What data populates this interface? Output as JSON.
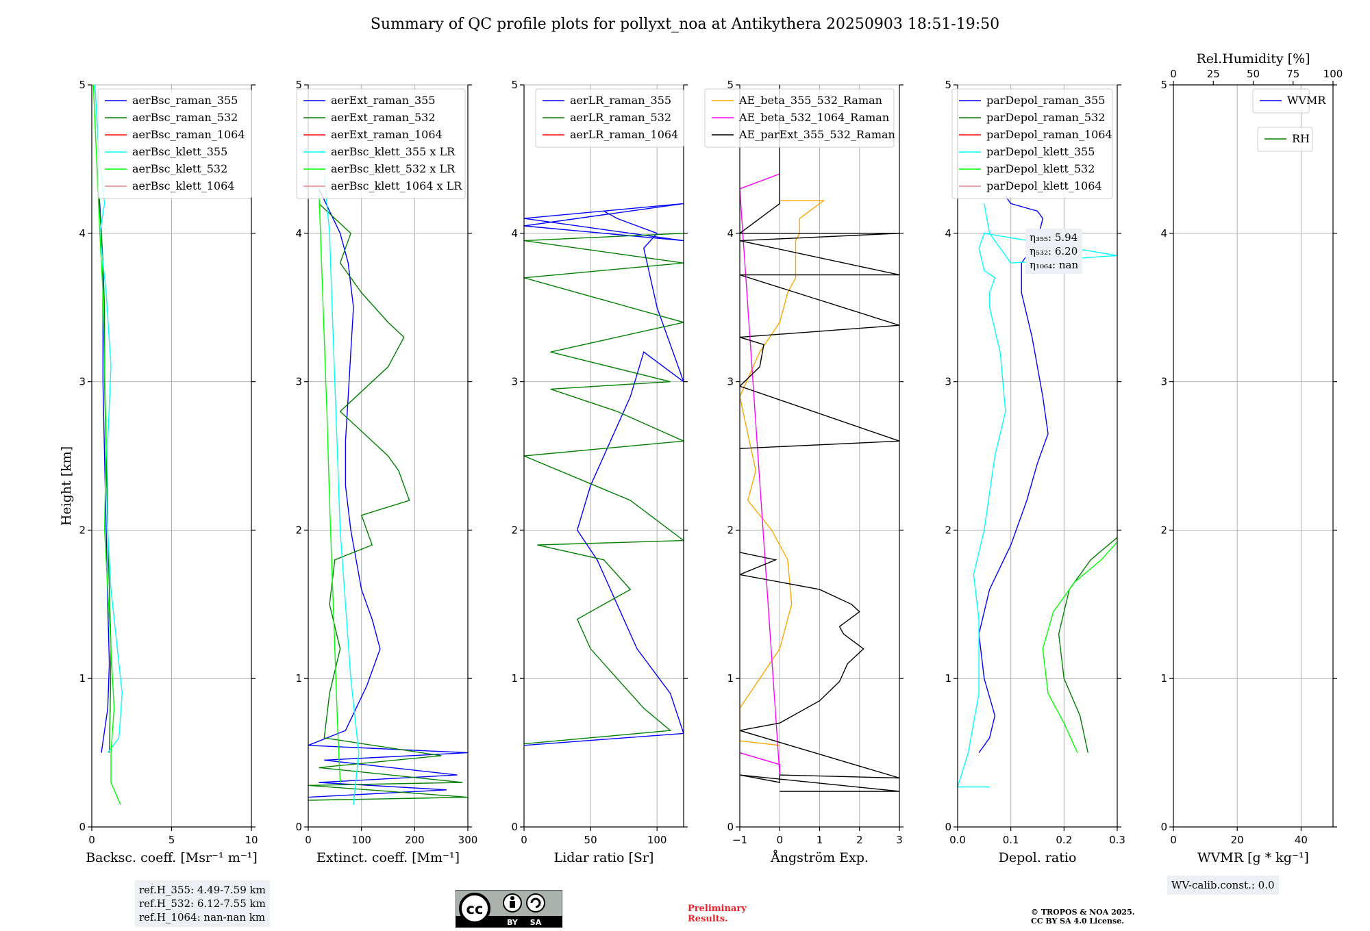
{
  "title": "Summary of QC profile plots for pollyxt_noa at Antikythera 20250903 18:51-19:50",
  "y_label": "Height [km]",
  "chart_data": [
    {
      "id": "backscatter",
      "type": "line",
      "xlabel": "Backsc. coeff. [Msr⁻¹ m⁻¹]",
      "xlim": [
        0,
        10
      ],
      "xticks": [
        0,
        5,
        10
      ],
      "ylim": [
        0,
        5
      ],
      "yticks": [
        0,
        1,
        2,
        3,
        4,
        5
      ],
      "legend": [
        {
          "name": "aerBsc_raman_355",
          "color": "#0000ff"
        },
        {
          "name": "aerBsc_raman_532",
          "color": "#008000"
        },
        {
          "name": "aerBsc_raman_1064",
          "color": "#ff0000"
        },
        {
          "name": "aerBsc_klett_355",
          "color": "#00ffff"
        },
        {
          "name": "aerBsc_klett_532",
          "color": "#00ff00"
        },
        {
          "name": "aerBsc_klett_1064",
          "color": "#f08080"
        }
      ],
      "series": [
        {
          "name": "aerBsc_raman_355",
          "color": "#0000ff",
          "x": [
            0.6,
            1.0,
            1.1,
            1.0,
            0.9,
            0.8,
            0.7,
            0.7,
            0.7,
            0.6,
            0.5,
            0.4
          ],
          "y": [
            0.5,
            0.8,
            1.1,
            1.5,
            2.0,
            2.5,
            3.0,
            3.5,
            3.8,
            4.0,
            4.2,
            4.3
          ]
        },
        {
          "name": "aerBsc_raman_532",
          "color": "#008000",
          "x": [
            1.1,
            1.15,
            1.2,
            1.1,
            1.0,
            0.9,
            0.8,
            0.8,
            0.7,
            0.6,
            0.4
          ],
          "y": [
            0.5,
            0.8,
            1.2,
            1.6,
            2.0,
            2.5,
            3.0,
            3.5,
            3.8,
            4.0,
            4.3
          ]
        },
        {
          "name": "aerBsc_klett_355",
          "color": "#00ffff",
          "x": [
            1.0,
            1.7,
            1.9,
            1.6,
            1.2,
            1.0,
            1.0,
            1.2,
            0.9,
            0.5,
            0.8,
            0.4,
            0.2
          ],
          "y": [
            0.5,
            0.6,
            0.9,
            1.2,
            1.6,
            2.0,
            2.6,
            3.1,
            3.6,
            4.0,
            4.2,
            4.6,
            5.0
          ]
        },
        {
          "name": "aerBsc_klett_532",
          "color": "#00ff00",
          "x": [
            1.8,
            1.2,
            1.2,
            1.4,
            1.2,
            1.0,
            0.8,
            0.9,
            0.8,
            0.7,
            0.5,
            0.3,
            0.1
          ],
          "y": [
            0.15,
            0.3,
            0.5,
            0.8,
            1.2,
            1.6,
            2.0,
            2.6,
            3.1,
            3.6,
            4.0,
            4.5,
            5.0
          ]
        }
      ]
    },
    {
      "id": "extinction",
      "type": "line",
      "xlabel": "Extinct. coeff. [Mm⁻¹]",
      "xlim": [
        0,
        300
      ],
      "xticks": [
        0,
        100,
        200,
        300
      ],
      "ylim": [
        0,
        5
      ],
      "yticks": [
        0,
        1,
        2,
        3,
        4,
        5
      ],
      "legend": [
        {
          "name": "aerExt_raman_355",
          "color": "#0000ff"
        },
        {
          "name": "aerExt_raman_532",
          "color": "#008000"
        },
        {
          "name": "aerExt_raman_1064",
          "color": "#ff0000"
        },
        {
          "name": "aerBsc_klett_355 x LR",
          "color": "#00ffff"
        },
        {
          "name": "aerBsc_klett_532 x LR",
          "color": "#00ff00"
        },
        {
          "name": "aerBsc_klett_1064 x LR",
          "color": "#f08080"
        }
      ],
      "series": [
        {
          "name": "aerExt_raman_355",
          "color": "#0000ff",
          "x": [
            0,
            260,
            20,
            280,
            30,
            300,
            0,
            70,
            90,
            110,
            135,
            120,
            100,
            90,
            80,
            70,
            70,
            75,
            80,
            85,
            75,
            60,
            40,
            20
          ],
          "y": [
            0.2,
            0.25,
            0.3,
            0.35,
            0.45,
            0.5,
            0.55,
            0.65,
            0.8,
            0.95,
            1.2,
            1.4,
            1.6,
            1.8,
            2.0,
            2.3,
            2.6,
            2.9,
            3.2,
            3.5,
            3.8,
            4.0,
            4.15,
            4.3
          ]
        },
        {
          "name": "aerExt_raman_532",
          "color": "#008000",
          "x": [
            0,
            300,
            0,
            290,
            20,
            250,
            30,
            40,
            60,
            40,
            50,
            120,
            100,
            190,
            170,
            150,
            60,
            150,
            180,
            150,
            100,
            60,
            80,
            20
          ],
          "y": [
            0.18,
            0.2,
            0.28,
            0.3,
            0.4,
            0.48,
            0.6,
            0.9,
            1.2,
            1.5,
            1.8,
            1.9,
            2.1,
            2.2,
            2.4,
            2.5,
            2.8,
            3.1,
            3.3,
            3.4,
            3.6,
            3.8,
            4.0,
            4.2
          ]
        },
        {
          "name": "aerBsc_klett_355 x LR",
          "color": "#00ffff",
          "x": [
            85,
            95,
            80,
            70,
            60,
            55,
            50,
            45,
            40,
            35,
            30
          ],
          "y": [
            0.15,
            0.5,
            1.0,
            1.5,
            2.0,
            2.5,
            3.0,
            3.5,
            4.0,
            4.2,
            4.4
          ]
        },
        {
          "name": "aerBsc_klett_532 x LR",
          "color": "#00ff00",
          "x": [
            60,
            55,
            50,
            45,
            40,
            35,
            30,
            25,
            20
          ],
          "y": [
            0.3,
            0.7,
            1.2,
            1.7,
            2.2,
            2.8,
            3.3,
            3.8,
            4.3
          ]
        }
      ]
    },
    {
      "id": "lidar_ratio",
      "type": "line",
      "xlabel": "Lidar ratio [Sr]",
      "xlim": [
        0,
        120
      ],
      "xticks": [
        0,
        50,
        100
      ],
      "ylim": [
        0,
        5
      ],
      "yticks": [
        0,
        1,
        2,
        3,
        4,
        5
      ],
      "legend": [
        {
          "name": "aerLR_raman_355",
          "color": "#0000ff"
        },
        {
          "name": "aerLR_raman_532",
          "color": "#008000"
        },
        {
          "name": "aerLR_raman_1064",
          "color": "#ff0000"
        }
      ],
      "series": [
        {
          "name": "aerLR_raman_355",
          "color": "#0000ff",
          "x": [
            0,
            120,
            110,
            85,
            70,
            55,
            40,
            50,
            65,
            80,
            90,
            120,
            100,
            90,
            100,
            70,
            60,
            120,
            0,
            120,
            0,
            120
          ],
          "y": [
            0.55,
            0.63,
            0.9,
            1.2,
            1.5,
            1.8,
            2.0,
            2.3,
            2.6,
            2.9,
            3.2,
            3.0,
            3.5,
            3.9,
            4.0,
            4.1,
            4.15,
            4.2,
            4.05,
            3.95,
            4.1,
            4.2
          ]
        },
        {
          "name": "aerLR_raman_532",
          "color": "#008000",
          "x": [
            0,
            110,
            90,
            70,
            50,
            40,
            80,
            60,
            10,
            120,
            80,
            0,
            120,
            70,
            20,
            110,
            20,
            120,
            0,
            120,
            0,
            120
          ],
          "y": [
            0.56,
            0.65,
            0.8,
            1.0,
            1.2,
            1.4,
            1.6,
            1.8,
            1.9,
            1.93,
            2.2,
            2.5,
            2.6,
            2.8,
            2.95,
            3.0,
            3.2,
            3.4,
            3.7,
            3.8,
            3.95,
            4.0
          ]
        }
      ]
    },
    {
      "id": "angstrom",
      "type": "line",
      "xlabel": "Ångström Exp.",
      "xlim": [
        -1,
        3
      ],
      "xticks": [
        -1,
        0,
        1,
        2,
        3
      ],
      "ylim": [
        0,
        5
      ],
      "yticks": [
        0,
        1,
        2,
        3,
        4,
        5
      ],
      "legend": [
        {
          "name": "AE_beta_355_532_Raman",
          "color": "#ffa500"
        },
        {
          "name": "AE_beta_532_1064_Raman",
          "color": "#ff00ff"
        },
        {
          "name": "AE_parExt_355_532_Raman",
          "color": "#000000"
        }
      ],
      "series": [
        {
          "name": "AE_beta_355_532_Raman",
          "color": "#ffa500",
          "x": [
            0,
            -1,
            -1,
            -0.5,
            0,
            0.3,
            0.2,
            -0.2,
            -0.8,
            -0.6,
            -1,
            -0.5,
            0,
            0.2,
            0.4,
            0.4,
            0.4,
            0.5,
            0.5,
            1.0,
            1.1,
            0
          ],
          "y": [
            0.55,
            0.58,
            0.8,
            1.0,
            1.2,
            1.5,
            1.8,
            2.0,
            2.2,
            2.4,
            2.9,
            3.2,
            3.4,
            3.6,
            3.7,
            3.8,
            3.95,
            4.0,
            4.1,
            4.2,
            4.22,
            4.22
          ]
        },
        {
          "name": "AE_beta_532_1064_Raman",
          "color": "#ff00ff",
          "x": [
            -1,
            0,
            0,
            -1,
            0
          ],
          "y": [
            0.5,
            0.42,
            0.35,
            4.3,
            4.4
          ]
        },
        {
          "name": "AE_parExt_355_532_Raman",
          "color": "#000000",
          "x": [
            0,
            3,
            -1,
            0,
            0,
            3,
            -1,
            0,
            1.0,
            1.5,
            1.7,
            1.9,
            2.1,
            1.6,
            1.5,
            2.0,
            1.8,
            1.0,
            -1,
            -0.1,
            -1,
            -1,
            3,
            -1,
            -0.5,
            -0.4,
            -1,
            3,
            -1,
            3,
            -1,
            3,
            -1,
            0,
            0
          ],
          "y": [
            0.24,
            0.24,
            0.35,
            0.3,
            0.35,
            0.33,
            0.65,
            0.7,
            0.85,
            0.98,
            1.1,
            1.15,
            1.2,
            1.3,
            1.35,
            1.45,
            1.5,
            1.6,
            1.7,
            1.8,
            1.85,
            2.55,
            2.6,
            2.97,
            3.1,
            3.25,
            3.3,
            3.38,
            3.72,
            3.72,
            3.95,
            4.0,
            4.0,
            4.2,
            5.0
          ]
        }
      ]
    },
    {
      "id": "depolarization",
      "type": "line",
      "xlabel": "Depol. ratio",
      "xlim": [
        0,
        0.3
      ],
      "xticks": [
        0.0,
        0.1,
        0.2,
        0.3
      ],
      "ylim": [
        0,
        5
      ],
      "yticks": [
        0,
        1,
        2,
        3,
        4,
        5
      ],
      "legend": [
        {
          "name": "parDepol_raman_355",
          "color": "#0000ff"
        },
        {
          "name": "parDepol_raman_532",
          "color": "#008000"
        },
        {
          "name": "parDepol_raman_1064",
          "color": "#ff0000"
        },
        {
          "name": "parDepol_klett_355",
          "color": "#00ffff"
        },
        {
          "name": "parDepol_klett_532",
          "color": "#00ff00"
        },
        {
          "name": "parDepol_klett_1064",
          "color": "#f08080"
        }
      ],
      "series": [
        {
          "name": "parDepol_raman_355",
          "color": "#0000ff",
          "x": [
            0.04,
            0.06,
            0.07,
            0.05,
            0.04,
            0.06,
            0.1,
            0.13,
            0.15,
            0.17,
            0.16,
            0.14,
            0.12,
            0.12,
            0.15,
            0.16,
            0.15,
            0.1,
            0.09
          ],
          "y": [
            0.5,
            0.6,
            0.75,
            1.0,
            1.3,
            1.6,
            1.9,
            2.2,
            2.45,
            2.65,
            2.9,
            3.3,
            3.6,
            3.8,
            3.95,
            4.1,
            4.15,
            4.2,
            4.25
          ]
        },
        {
          "name": "parDepol_raman_532",
          "color": "#008000",
          "x": [
            0.245,
            0.23,
            0.2,
            0.19,
            0.21,
            0.25,
            0.3
          ],
          "y": [
            0.5,
            0.75,
            1.0,
            1.3,
            1.6,
            1.8,
            1.95
          ]
        },
        {
          "name": "parDepol_klett_355",
          "color": "#00ffff",
          "x": [
            0.06,
            0.0,
            0.02,
            0.04,
            0.04,
            0.03,
            0.05,
            0.07,
            0.09,
            0.08,
            0.06,
            0.06,
            0.07,
            0.05,
            0.04,
            0.05,
            0.3,
            0.1,
            0.06,
            0.05
          ],
          "y": [
            0.27,
            0.27,
            0.5,
            0.9,
            1.4,
            1.7,
            2.0,
            2.5,
            2.8,
            3.2,
            3.5,
            3.6,
            3.7,
            3.75,
            3.9,
            4.0,
            3.85,
            3.8,
            4.0,
            4.2
          ]
        },
        {
          "name": "parDepol_klett_532",
          "color": "#00ff00",
          "x": [
            0.225,
            0.2,
            0.17,
            0.16,
            0.18,
            0.22,
            0.27,
            0.3
          ],
          "y": [
            0.5,
            0.7,
            0.9,
            1.2,
            1.45,
            1.65,
            1.8,
            1.92
          ]
        }
      ]
    },
    {
      "id": "wvmr",
      "type": "line",
      "xlabel": "WVMR [g * kg⁻¹]",
      "xlim": [
        0,
        50
      ],
      "xticks": [
        0,
        20,
        40
      ],
      "top_xlabel": "Rel.Humidity [%]",
      "top_xlim": [
        0,
        100
      ],
      "top_xticks": [
        0,
        25,
        50,
        75,
        100
      ],
      "ylim": [
        0,
        5
      ],
      "yticks": [
        0,
        1,
        2,
        3,
        4,
        5
      ],
      "legend": [
        {
          "name": "WVMR",
          "color": "#0000ff"
        }
      ],
      "legend2": [
        {
          "name": "RH",
          "color": "#008000"
        }
      ],
      "series": []
    }
  ],
  "annotations": {
    "eta_box": {
      "eta355": "η₃₅₅: 5.94",
      "eta532": "η₅₃₂: 6.20",
      "eta1064": "η₁₀₆₄: nan"
    },
    "ref_box": {
      "line1": "ref.H_355: 4.49-7.59 km",
      "line2": "ref.H_532: 6.12-7.55 km",
      "line3": "ref.H_1064: nan-nan km"
    },
    "wv_calib": "WV-calib.const.: 0.0",
    "prelim_line1": "Preliminary",
    "prelim_line2": "Results.",
    "copyright_line1": "© TROPOS & NOA 2025.",
    "copyright_line2": "CC BY SA 4.0 License.",
    "cc_text": "cc",
    "cc_by": "BY",
    "cc_sa": "SA"
  }
}
